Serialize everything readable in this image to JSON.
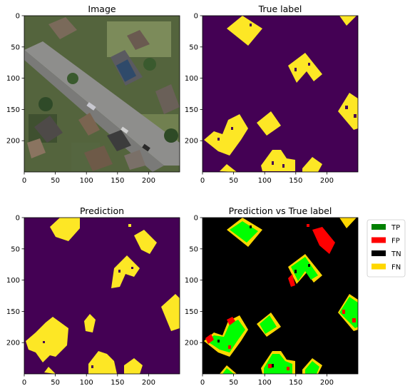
{
  "chart_data": [
    {
      "type": "image",
      "title": "Image",
      "xlim": [
        0,
        250
      ],
      "ylim": [
        250,
        0
      ],
      "xticks": [
        0,
        50,
        100,
        150,
        200
      ],
      "yticks": [
        0,
        50,
        100,
        150,
        200
      ],
      "content": "aerial photograph"
    },
    {
      "type": "heatmap",
      "title": "True label",
      "xlim": [
        0,
        250
      ],
      "ylim": [
        250,
        0
      ],
      "xticks": [
        0,
        50,
        100,
        150,
        200
      ],
      "yticks": [
        0,
        50,
        100,
        150,
        200
      ],
      "colormap": {
        "background": "#440154",
        "building": "#fde725"
      }
    },
    {
      "type": "heatmap",
      "title": "Prediction",
      "xlim": [
        0,
        250
      ],
      "ylim": [
        250,
        0
      ],
      "xticks": [
        0,
        50,
        100,
        150,
        200
      ],
      "yticks": [
        0,
        50,
        100,
        150,
        200
      ],
      "colormap": {
        "background": "#440154",
        "building": "#fde725"
      }
    },
    {
      "type": "heatmap",
      "title": "Prediction vs True label",
      "xlim": [
        0,
        250
      ],
      "ylim": [
        250,
        0
      ],
      "xticks": [
        0,
        50,
        100,
        150,
        200
      ],
      "yticks": [
        0,
        50,
        100,
        150,
        200
      ],
      "legend": {
        "placement": "right",
        "entries": [
          {
            "label": "TP",
            "color": "#008000"
          },
          {
            "label": "FP",
            "color": "#ff0000"
          },
          {
            "label": "TN",
            "color": "#000000"
          },
          {
            "label": "FN",
            "color": "#ffd700"
          }
        ]
      }
    }
  ]
}
